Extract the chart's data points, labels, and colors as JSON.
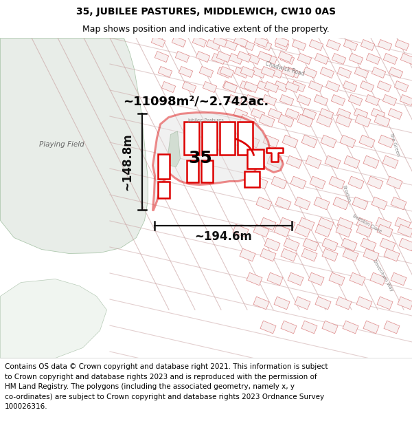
{
  "title": "35, JUBILEE PASTURES, MIDDLEWICH, CW10 0AS",
  "subtitle": "Map shows position and indicative extent of the property.",
  "footer": "Contains OS data © Crown copyright and database right 2021. This information is subject\nto Crown copyright and database rights 2023 and is reproduced with the permission of\nHM Land Registry. The polygons (including the associated geometry, namely x, y\nco-ordinates) are subject to Crown copyright and database rights 2023 Ordnance Survey\n100026316.",
  "area_label": "~11098m²/~2.742ac.",
  "width_label": "~194.6m",
  "height_label": "~148.8m",
  "plot_number": "35",
  "title_fontsize": 10.0,
  "subtitle_fontsize": 9.0,
  "footer_fontsize": 7.5,
  "map_bg": "#f7f7f5",
  "playing_field_color": "#e8ede8",
  "bottom_field_color": "#f0f5f0",
  "plot_edge_color": "#dd0000",
  "building_edge_color": "#e09090",
  "building_fill": "#f8f0f0",
  "road_fill": "#f5f5f5",
  "green_strip_color": "#c8dcc8",
  "dim_color": "#111111",
  "road_line_color": "#c8a0a0",
  "label_color": "#888888"
}
